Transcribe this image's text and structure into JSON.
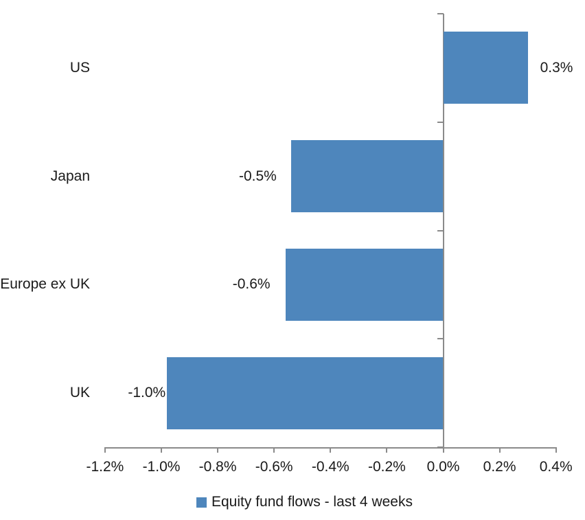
{
  "chart_data": {
    "type": "bar",
    "orientation": "horizontal",
    "title": "",
    "xlabel": "",
    "ylabel": "",
    "categories": [
      "US",
      "Japan",
      "Europe ex UK",
      "UK"
    ],
    "values": [
      0.3,
      -0.54,
      -0.56,
      -0.98
    ],
    "data_labels": [
      "0.3%",
      "-0.5%",
      "-0.6%",
      "-1.0%"
    ],
    "series_name": "Equity fund flows - last 4 weeks",
    "xlim": [
      -1.2,
      0.4
    ],
    "x_tick_step": 0.2,
    "x_tick_labels": [
      "-1.2%",
      "-1.0%",
      "-0.8%",
      "-0.6%",
      "-0.4%",
      "-0.2%",
      "0.0%",
      "0.2%",
      "0.4%"
    ],
    "grid": false,
    "legend_position": "bottom",
    "bar_color": "#4E86BC",
    "axis_color": "#8A8A8A",
    "text_color": "#1A1A1A"
  },
  "legend": {
    "label": "Equity fund flows - last 4 weeks",
    "swatch_color": "#4E86BC"
  }
}
